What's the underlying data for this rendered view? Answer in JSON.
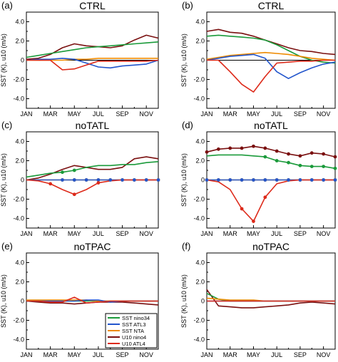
{
  "x_ticks": [
    "JAN",
    "MAR",
    "MAY",
    "JUL",
    "SEP",
    "NOV"
  ],
  "y_ticks": [
    "4.0",
    "2.0",
    "0",
    "-2.0",
    "-4.0"
  ],
  "ylabel": "SST (K), u10 (m/s)",
  "legend": [
    {
      "label": "SST nino34",
      "color": "#1a9a3a"
    },
    {
      "label": "SST ATL3",
      "color": "#2255cc"
    },
    {
      "label": "SST NTA",
      "color": "#ee8a00"
    },
    {
      "label": "U10 nino4",
      "color": "#7a1010"
    },
    {
      "label": "U10 ATL4",
      "color": "#dd2a1a"
    }
  ],
  "chart_data": [
    {
      "type": "line",
      "panel": "(a)",
      "title": "CTRL",
      "x": [
        "JAN",
        "FEB",
        "MAR",
        "APR",
        "MAY",
        "JUN",
        "JUL",
        "AUG",
        "SEP",
        "OCT",
        "NOV",
        "DEC"
      ],
      "ylim": [
        -5,
        5
      ],
      "series": [
        {
          "name": "SST nino34",
          "color": "#1a9a3a",
          "values": [
            0.3,
            0.5,
            0.7,
            0.9,
            1.1,
            1.3,
            1.4,
            1.5,
            1.6,
            1.7,
            1.8,
            1.9
          ],
          "markers": []
        },
        {
          "name": "SST ATL3",
          "color": "#2255cc",
          "values": [
            0.0,
            0.1,
            0.1,
            0.2,
            0.1,
            -0.3,
            -0.7,
            -0.8,
            -0.6,
            -0.5,
            -0.4,
            0.0
          ],
          "markers": []
        },
        {
          "name": "SST NTA",
          "color": "#ee8a00",
          "values": [
            0.0,
            0.0,
            0.0,
            0.0,
            0.1,
            0.1,
            0.2,
            0.2,
            0.2,
            0.2,
            0.2,
            0.2
          ],
          "markers": []
        },
        {
          "name": "U10 nino4",
          "color": "#7a1010",
          "values": [
            0.1,
            0.2,
            0.6,
            1.3,
            1.7,
            1.5,
            1.4,
            1.3,
            1.5,
            2.1,
            2.6,
            2.3
          ],
          "markers": []
        },
        {
          "name": "U10 ATL4",
          "color": "#dd2a1a",
          "values": [
            0.0,
            0.0,
            0.0,
            -1.0,
            -0.9,
            -0.5,
            -0.1,
            -0.1,
            -0.1,
            -0.1,
            -0.1,
            0.0
          ],
          "markers": []
        }
      ]
    },
    {
      "type": "line",
      "panel": "(b)",
      "title": "CTRL",
      "x": [
        "JAN",
        "FEB",
        "MAR",
        "APR",
        "MAY",
        "JUN",
        "JUL",
        "AUG",
        "SEP",
        "OCT",
        "NOV",
        "DEC"
      ],
      "ylim": [
        -5,
        5
      ],
      "series": [
        {
          "name": "SST nino34",
          "color": "#1a9a3a",
          "values": [
            2.5,
            2.6,
            2.5,
            2.4,
            2.3,
            2.1,
            1.6,
            1.0,
            0.4,
            0.0,
            -0.2,
            -0.3
          ],
          "markers": []
        },
        {
          "name": "SST ATL3",
          "color": "#2255cc",
          "values": [
            0.0,
            0.2,
            0.4,
            0.5,
            0.6,
            0.2,
            -1.2,
            -1.9,
            -1.3,
            -0.8,
            -0.4,
            -0.2
          ],
          "markers": []
        },
        {
          "name": "SST NTA",
          "color": "#ee8a00",
          "values": [
            0.1,
            0.3,
            0.5,
            0.6,
            0.7,
            0.8,
            0.7,
            0.6,
            0.4,
            0.2,
            0.1,
            0.0
          ],
          "markers": []
        },
        {
          "name": "U10 nino4",
          "color": "#7a1010",
          "values": [
            3.0,
            3.2,
            2.9,
            2.8,
            2.5,
            2.1,
            1.7,
            1.3,
            1.0,
            0.9,
            0.7,
            0.6
          ],
          "markers": []
        },
        {
          "name": "U10 ATL4",
          "color": "#dd2a1a",
          "values": [
            0.0,
            0.0,
            -1.2,
            -2.5,
            -3.3,
            -1.7,
            -0.3,
            -0.2,
            -0.1,
            -0.1,
            0.0,
            0.0
          ],
          "markers": []
        }
      ]
    },
    {
      "type": "line",
      "panel": "(c)",
      "title": "noTATL",
      "x": [
        "JAN",
        "FEB",
        "MAR",
        "APR",
        "MAY",
        "JUN",
        "JUL",
        "AUG",
        "SEP",
        "OCT",
        "NOV",
        "DEC"
      ],
      "ylim": [
        -5,
        5
      ],
      "series": [
        {
          "name": "SST nino34",
          "color": "#1a9a3a",
          "values": [
            0.3,
            0.5,
            0.7,
            0.8,
            1.0,
            1.3,
            1.5,
            1.5,
            1.6,
            1.6,
            1.8,
            1.9
          ],
          "markers": [
            3,
            4
          ]
        },
        {
          "name": "SST ATL3",
          "color": "#2255cc",
          "values": [
            0.0,
            0.0,
            0.0,
            0.0,
            0.0,
            0.0,
            0.0,
            0.0,
            0.0,
            0.0,
            0.0,
            0.0
          ],
          "markers": [
            3,
            4,
            5,
            6,
            7,
            8,
            9,
            10,
            11
          ]
        },
        {
          "name": "SST NTA",
          "color": "#ee8a00",
          "values": [
            0.0,
            0.0,
            0.0,
            0.0,
            0.0,
            0.0,
            0.0,
            0.0,
            0.0,
            0.0,
            0.0,
            0.0
          ],
          "markers": [
            3,
            4,
            5,
            6,
            7,
            8,
            9,
            10,
            11
          ]
        },
        {
          "name": "U10 nino4",
          "color": "#7a1010",
          "values": [
            0.0,
            0.2,
            0.6,
            1.1,
            1.5,
            1.3,
            1.1,
            1.1,
            1.3,
            2.2,
            2.4,
            2.2
          ],
          "markers": []
        },
        {
          "name": "U10 ATL4",
          "color": "#dd2a1a",
          "values": [
            0.0,
            -0.1,
            -0.4,
            -1.0,
            -1.5,
            -1.0,
            -0.3,
            -0.1,
            0.0,
            0.0,
            0.0,
            0.0
          ],
          "markers": [
            2,
            4,
            6
          ]
        }
      ]
    },
    {
      "type": "line",
      "panel": "(d)",
      "title": "noTATL",
      "x": [
        "JAN",
        "FEB",
        "MAR",
        "APR",
        "MAY",
        "JUN",
        "JUL",
        "AUG",
        "SEP",
        "OCT",
        "NOV",
        "DEC"
      ],
      "ylim": [
        -5,
        5
      ],
      "series": [
        {
          "name": "SST nino34",
          "color": "#1a9a3a",
          "values": [
            2.5,
            2.6,
            2.6,
            2.6,
            2.5,
            2.4,
            2.0,
            1.8,
            1.5,
            1.4,
            1.4,
            1.2
          ],
          "markers": [
            5,
            6,
            7,
            8,
            9,
            10,
            11
          ]
        },
        {
          "name": "SST ATL3",
          "color": "#2255cc",
          "values": [
            0.0,
            0.0,
            0.0,
            0.0,
            0.0,
            0.0,
            0.0,
            0.0,
            0.0,
            0.0,
            0.0,
            0.0
          ],
          "markers": [
            0,
            1,
            2,
            3,
            4,
            5,
            6,
            7,
            8,
            9,
            10,
            11
          ]
        },
        {
          "name": "SST NTA",
          "color": "#ee8a00",
          "values": [
            0.0,
            0.0,
            0.0,
            0.0,
            0.0,
            0.0,
            0.0,
            0.0,
            0.0,
            0.0,
            0.0,
            0.0
          ],
          "markers": [
            0,
            1,
            2,
            3,
            4,
            5,
            6,
            7,
            8,
            9,
            10,
            11
          ]
        },
        {
          "name": "U10 nino4",
          "color": "#7a1010",
          "values": [
            2.9,
            3.2,
            3.3,
            3.3,
            3.5,
            3.3,
            3.0,
            2.7,
            2.5,
            2.8,
            2.7,
            2.4
          ],
          "markers": [
            0,
            1,
            2,
            3,
            4,
            5,
            6,
            7,
            8,
            9,
            10,
            11
          ]
        },
        {
          "name": "U10 ATL4",
          "color": "#dd2a1a",
          "values": [
            0.0,
            -0.2,
            -1.0,
            -3.0,
            -4.3,
            -1.8,
            -0.4,
            -0.1,
            0.0,
            0.0,
            0.0,
            0.0
          ],
          "markers": [
            3,
            4,
            5
          ]
        }
      ]
    },
    {
      "type": "line",
      "panel": "(e)",
      "title": "noTPAC",
      "x": [
        "JAN",
        "FEB",
        "MAR",
        "APR",
        "MAY",
        "JUN",
        "JUL",
        "AUG",
        "SEP",
        "OCT",
        "NOV",
        "DEC"
      ],
      "ylim": [
        -5,
        5
      ],
      "series": [
        {
          "name": "SST nino34",
          "color": "#1a9a3a",
          "values": [
            0.0,
            0.0,
            0.0,
            0.0,
            0.0,
            0.0,
            0.0,
            0.0,
            0.0,
            0.0,
            0.0,
            0.0
          ],
          "markers": []
        },
        {
          "name": "SST ATL3",
          "color": "#2255cc",
          "values": [
            0.0,
            0.0,
            0.0,
            0.0,
            0.0,
            0.1,
            0.1,
            -0.1,
            0.0,
            0.0,
            0.0,
            0.0
          ],
          "markers": []
        },
        {
          "name": "SST NTA",
          "color": "#ee8a00",
          "values": [
            0.1,
            0.1,
            0.1,
            0.1,
            0.1,
            0.1,
            0.0,
            0.0,
            0.0,
            0.0,
            0.0,
            0.0
          ],
          "markers": []
        },
        {
          "name": "U10 nino4",
          "color": "#7a1010",
          "values": [
            0.0,
            -0.1,
            -0.2,
            -0.2,
            -0.3,
            -0.2,
            -0.1,
            -0.1,
            -0.1,
            -0.2,
            -0.3,
            -0.4
          ],
          "markers": []
        },
        {
          "name": "U10 ATL4",
          "color": "#dd2a1a",
          "values": [
            0.0,
            0.0,
            -0.1,
            -0.1,
            0.4,
            -0.2,
            -0.1,
            0.0,
            0.0,
            0.0,
            0.0,
            0.0
          ],
          "markers": []
        }
      ]
    },
    {
      "type": "line",
      "panel": "(f)",
      "title": "noTPAC",
      "x": [
        "JAN",
        "FEB",
        "MAR",
        "APR",
        "MAY",
        "JUN",
        "JUL",
        "AUG",
        "SEP",
        "OCT",
        "NOV",
        "DEC"
      ],
      "ylim": [
        -5,
        5
      ],
      "series": [
        {
          "name": "SST nino34",
          "color": "#1a9a3a",
          "values": [
            0.8,
            0.2,
            0.0,
            0.0,
            0.0,
            0.0,
            0.0,
            0.0,
            0.0,
            0.0,
            0.0,
            0.0
          ],
          "markers": []
        },
        {
          "name": "SST ATL3",
          "color": "#2255cc",
          "values": [
            0.0,
            0.0,
            0.0,
            0.0,
            0.0,
            0.0,
            0.0,
            0.0,
            0.0,
            0.0,
            0.0,
            0.0
          ],
          "markers": []
        },
        {
          "name": "SST NTA",
          "color": "#ee8a00",
          "values": [
            0.3,
            0.2,
            0.1,
            0.1,
            0.1,
            0.0,
            0.0,
            0.0,
            0.0,
            0.0,
            0.0,
            0.0
          ],
          "markers": []
        },
        {
          "name": "U10 nino4",
          "color": "#7a1010",
          "values": [
            1.2,
            -0.5,
            -0.6,
            -0.7,
            -0.7,
            -0.6,
            -0.5,
            -0.4,
            -0.2,
            -0.1,
            -0.2,
            -0.3
          ],
          "markers": []
        },
        {
          "name": "U10 ATL4",
          "color": "#dd2a1a",
          "values": [
            0.0,
            0.0,
            0.0,
            0.0,
            0.0,
            0.0,
            0.0,
            0.0,
            0.0,
            0.0,
            0.0,
            0.0
          ],
          "markers": []
        }
      ]
    }
  ]
}
